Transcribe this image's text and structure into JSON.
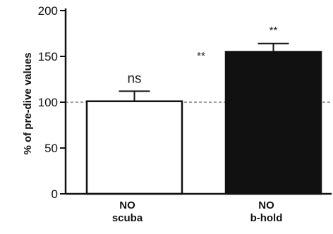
{
  "chart_data": {
    "type": "bar",
    "title": "",
    "xlabel": "",
    "ylabel": "% of pre-dive values",
    "ylim": [
      0,
      200
    ],
    "yticks": [
      0,
      50,
      100,
      150,
      200
    ],
    "categories": [
      {
        "line1": "NO",
        "line2": "scuba"
      },
      {
        "line1": "NO",
        "line2": "b-hold"
      }
    ],
    "values": [
      101,
      155
    ],
    "errors": [
      11,
      9
    ],
    "bar_colors": [
      "#ffffff",
      "#111111"
    ],
    "bar_edge_color": "#111111",
    "reference_line": {
      "value": 100,
      "style": "dashed",
      "color": "#666666"
    },
    "annotations": {
      "bar_labels": [
        "ns",
        "**"
      ],
      "side_label": "**"
    },
    "grid": false
  }
}
